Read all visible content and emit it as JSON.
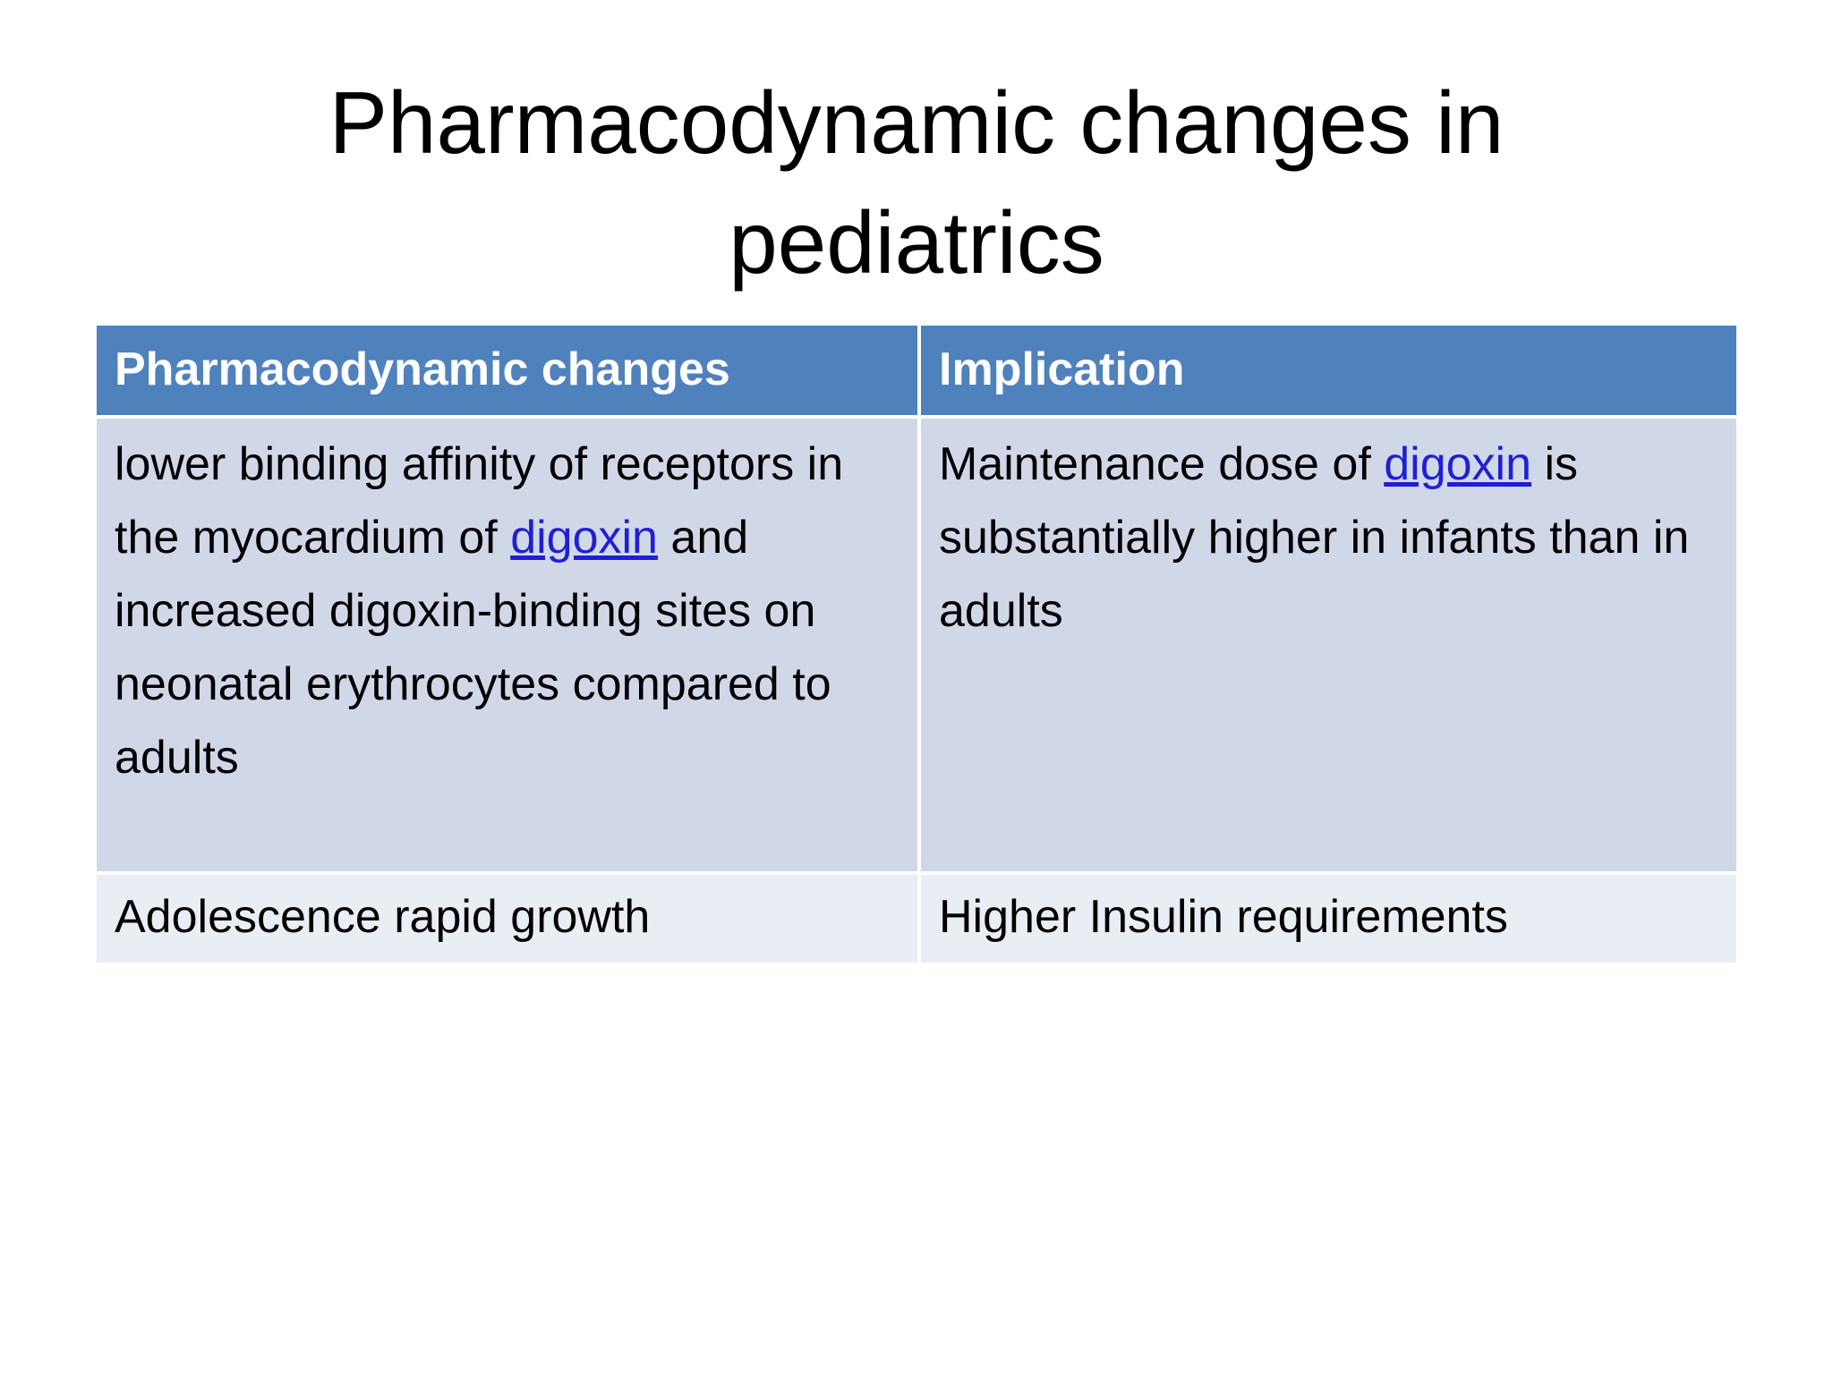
{
  "title": "Pharmacodynamic changes in pediatrics",
  "table": {
    "headers": [
      "Pharmacodynamic changes",
      "Implication"
    ],
    "rows": [
      [
        {
          "before": "lower binding affinity of receptors in the myocardium of ",
          "link": "digoxin",
          "after": " and increased digoxin-binding sites on neonatal erythrocytes compared to adults"
        },
        {
          "before": "Maintenance dose of ",
          "link": "digoxin",
          "after": " is substantially higher in infants than in adults"
        }
      ],
      [
        "Adolescence rapid growth",
        "Higher Insulin requirements"
      ]
    ]
  }
}
